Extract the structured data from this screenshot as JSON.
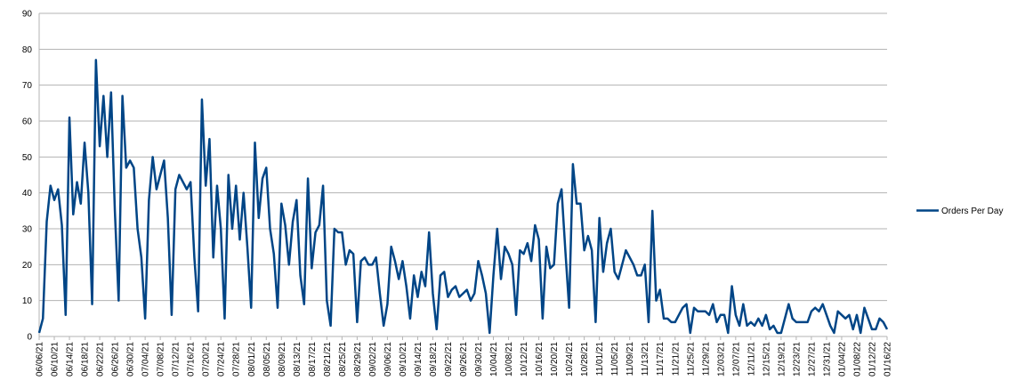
{
  "chart_data": {
    "type": "line",
    "categories": [
      "06/06/21",
      null,
      null,
      null,
      "06/10/21",
      null,
      null,
      null,
      "06/14/21",
      null,
      null,
      null,
      "06/18/21",
      null,
      null,
      null,
      "06/22/21",
      null,
      null,
      null,
      "06/26/21",
      null,
      null,
      null,
      "06/30/21",
      null,
      null,
      null,
      "07/04/21",
      null,
      null,
      null,
      "07/08/21",
      null,
      null,
      null,
      "07/12/21",
      null,
      null,
      null,
      "07/16/21",
      null,
      null,
      null,
      "07/20/21",
      null,
      null,
      null,
      "07/24/21",
      null,
      null,
      null,
      "07/28/21",
      null,
      null,
      null,
      "08/01/21",
      null,
      null,
      null,
      "08/05/21",
      null,
      null,
      null,
      "08/09/21",
      null,
      null,
      null,
      "08/13/21",
      null,
      null,
      null,
      "08/17/21",
      null,
      null,
      null,
      "08/21/21",
      null,
      null,
      null,
      "08/25/21",
      null,
      null,
      null,
      "08/29/21",
      null,
      null,
      null,
      "09/02/21",
      null,
      null,
      null,
      "09/06/21",
      null,
      null,
      null,
      "09/10/21",
      null,
      null,
      null,
      "09/14/21",
      null,
      null,
      null,
      "09/18/21",
      null,
      null,
      null,
      "09/22/21",
      null,
      null,
      null,
      "09/26/21",
      null,
      null,
      null,
      "09/30/21",
      null,
      null,
      null,
      "10/04/21",
      null,
      null,
      null,
      "10/08/21",
      null,
      null,
      null,
      "10/12/21",
      null,
      null,
      null,
      "10/16/21",
      null,
      null,
      null,
      "10/20/21",
      null,
      null,
      null,
      "10/24/21",
      null,
      null,
      null,
      "10/28/21",
      null,
      null,
      null,
      "11/01/21",
      null,
      null,
      null,
      "11/05/21",
      null,
      null,
      null,
      "11/09/21",
      null,
      null,
      null,
      "11/13/21",
      null,
      null,
      null,
      "11/17/21",
      null,
      null,
      null,
      "11/21/21",
      null,
      null,
      null,
      "11/25/21",
      null,
      null,
      null,
      "11/29/21",
      null,
      null,
      null,
      "12/03/21",
      null,
      null,
      null,
      "12/07/21",
      null,
      null,
      null,
      "12/11/21",
      null,
      null,
      null,
      "12/15/21",
      null,
      null,
      null,
      "12/19/21",
      null,
      null,
      null,
      "12/23/21",
      null,
      null,
      null,
      "12/27/21",
      null,
      null,
      null,
      "12/31/21",
      null,
      null,
      null,
      "01/04/22",
      null,
      null,
      null,
      "01/08/22",
      null,
      null,
      null,
      "01/12/22",
      null,
      null,
      null,
      "01/16/22"
    ],
    "series": [
      {
        "name": "Orders Per Day",
        "color": "#004586",
        "values": [
          1,
          5,
          32,
          42,
          38,
          41,
          31,
          6,
          61,
          34,
          43,
          37,
          54,
          40,
          9,
          77,
          53,
          67,
          50,
          68,
          35,
          10,
          67,
          47,
          49,
          47,
          30,
          22,
          5,
          38,
          50,
          41,
          45,
          49,
          33,
          6,
          41,
          45,
          43,
          41,
          43,
          22,
          7,
          66,
          42,
          55,
          22,
          42,
          30,
          5,
          45,
          30,
          42,
          27,
          40,
          25,
          8,
          54,
          33,
          44,
          47,
          30,
          23,
          8,
          37,
          31,
          20,
          32,
          38,
          17,
          9,
          44,
          19,
          29,
          31,
          42,
          10,
          3,
          30,
          29,
          29,
          20,
          24,
          23,
          4,
          21,
          22,
          20,
          20,
          22,
          12,
          3,
          9,
          25,
          21,
          16,
          21,
          14,
          5,
          17,
          11,
          18,
          14,
          29,
          12,
          2,
          17,
          18,
          11,
          13,
          14,
          11,
          12,
          13,
          10,
          12,
          21,
          17,
          12,
          1,
          17,
          30,
          16,
          25,
          23,
          20,
          6,
          24,
          23,
          26,
          21,
          31,
          27,
          5,
          25,
          19,
          20,
          37,
          41,
          24,
          8,
          48,
          37,
          37,
          24,
          28,
          24,
          4,
          33,
          18,
          26,
          30,
          18,
          16,
          20,
          24,
          22,
          20,
          17,
          17,
          20,
          4,
          35,
          10,
          13,
          5,
          5,
          4,
          4,
          6,
          8,
          9,
          1,
          8,
          7,
          7,
          7,
          6,
          9,
          4,
          6,
          6,
          1,
          14,
          6,
          3,
          9,
          3,
          4,
          3,
          5,
          3,
          6,
          2,
          3,
          1,
          1,
          5,
          9,
          5,
          4,
          4,
          4,
          4,
          7,
          8,
          7,
          9,
          6,
          3,
          1,
          7,
          6,
          5,
          6,
          2,
          6,
          1,
          8,
          5,
          2,
          2,
          5,
          4,
          2
        ]
      }
    ],
    "ylim": [
      0,
      90
    ],
    "yticks": [
      0,
      10,
      20,
      30,
      40,
      50,
      60,
      70,
      80,
      90
    ],
    "grid": true,
    "legend": "right"
  }
}
